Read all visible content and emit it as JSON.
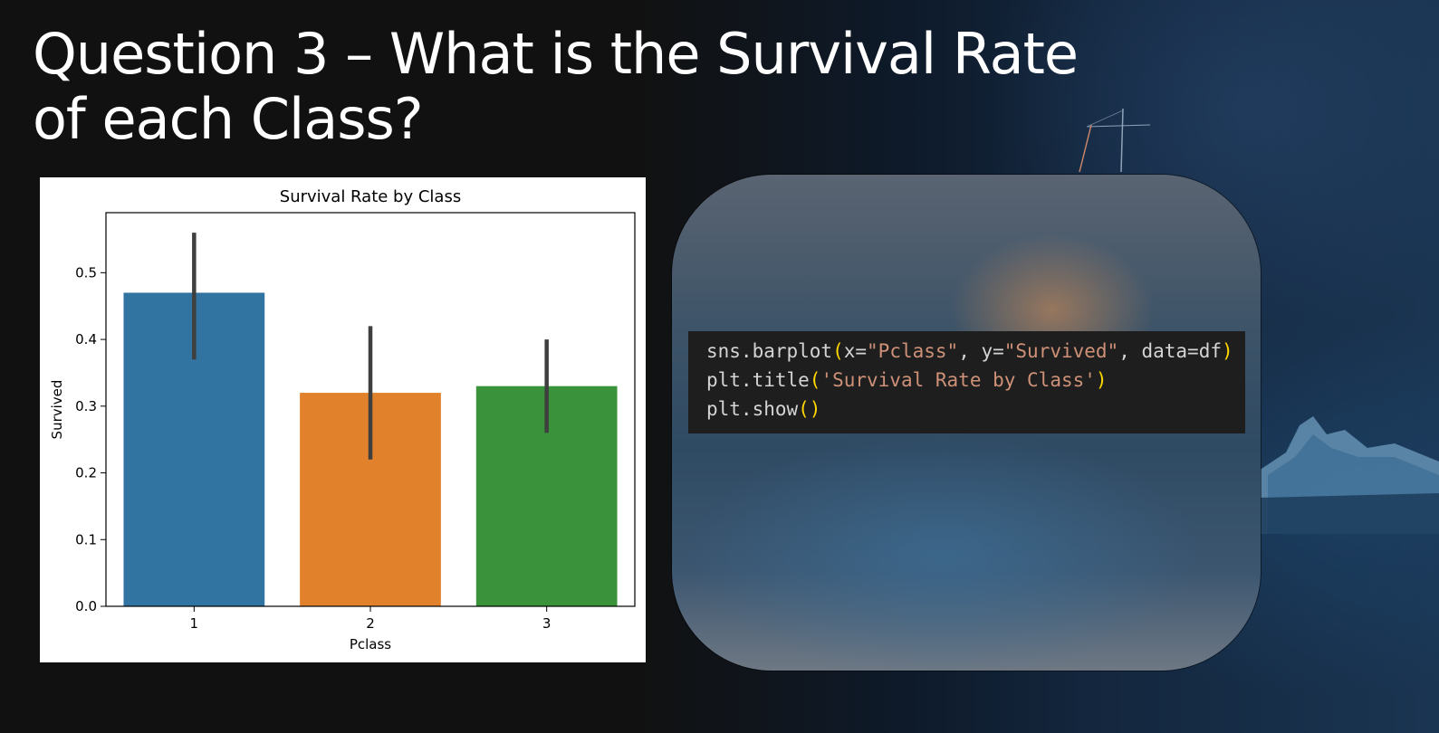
{
  "slide": {
    "title": "Question 3 – What is the Survival Rate of each Class?"
  },
  "colors": {
    "background": "#111111",
    "code_bg": "#1e1e1e",
    "code_text": "#d4d4d4",
    "code_string": "#ce9178",
    "code_paren": "#ffd700"
  },
  "chart_data": {
    "type": "bar",
    "title": "Survival Rate by Class",
    "xlabel": "Pclass",
    "ylabel": "Survived",
    "categories": [
      "1",
      "2",
      "3"
    ],
    "values": [
      0.47,
      0.32,
      0.33
    ],
    "error_low": [
      0.37,
      0.22,
      0.26
    ],
    "error_high": [
      0.56,
      0.42,
      0.4
    ],
    "colors": [
      "#3274a1",
      "#e1812c",
      "#3a923a"
    ],
    "ylim": [
      0,
      0.59
    ],
    "yticks": [
      0.0,
      0.1,
      0.2,
      0.3,
      0.4,
      0.5
    ],
    "ytick_labels": [
      "0.0",
      "0.1",
      "0.2",
      "0.3",
      "0.4",
      "0.5"
    ],
    "grid": false
  },
  "code": {
    "lines": [
      [
        {
          "t": "sns.barplot",
          "k": "plain"
        },
        {
          "t": "(",
          "k": "paren"
        },
        {
          "t": "x=",
          "k": "plain"
        },
        {
          "t": "\"Pclass\"",
          "k": "str"
        },
        {
          "t": ", y=",
          "k": "plain"
        },
        {
          "t": "\"Survived\"",
          "k": "str"
        },
        {
          "t": ", data=df",
          "k": "plain"
        },
        {
          "t": ")",
          "k": "paren"
        }
      ],
      [
        {
          "t": "plt.title",
          "k": "plain"
        },
        {
          "t": "(",
          "k": "paren"
        },
        {
          "t": "'Survival Rate by Class'",
          "k": "str"
        },
        {
          "t": ")",
          "k": "paren"
        }
      ],
      [
        {
          "t": "plt.show",
          "k": "plain"
        },
        {
          "t": "()",
          "k": "paren"
        }
      ]
    ]
  }
}
